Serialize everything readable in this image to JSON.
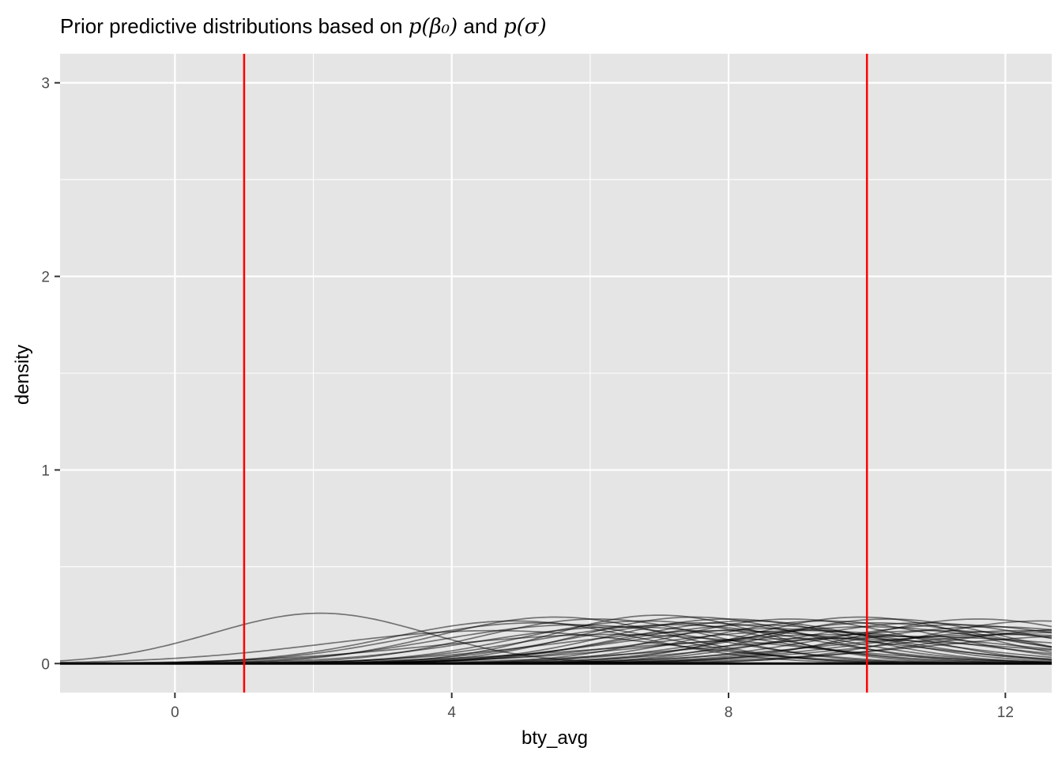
{
  "chart_data": {
    "type": "line",
    "title_prefix": "Prior predictive distributions based on ",
    "title_math_1": "p(β₀)",
    "title_and": " and ",
    "title_math_2": "p(σ)",
    "xlabel": "bty_avg",
    "ylabel": "density",
    "xlim": [
      -1.66,
      12.67
    ],
    "ylim": [
      -0.15,
      3.15
    ],
    "x_ticks": [
      0,
      4,
      8,
      12
    ],
    "x_minor": [
      2,
      6,
      10
    ],
    "y_ticks": [
      0,
      1,
      2,
      3
    ],
    "y_minor": [
      0.5,
      1.5,
      2.5
    ],
    "grid": true,
    "background": "#e5e5e5",
    "grid_color": "#ffffff",
    "curve_color": "#000000",
    "reference_lines": {
      "x": [
        1,
        10
      ],
      "color": "#ff0000"
    },
    "series": [
      {
        "mean": 2.1,
        "sd": 1.55,
        "peak": 0.26
      },
      {
        "mean": 5.5,
        "sd": 1.7,
        "peak": 0.24
      },
      {
        "mean": 7.0,
        "sd": 1.55,
        "peak": 0.25
      },
      {
        "mean": 9.9,
        "sd": 1.65,
        "peak": 0.24
      },
      {
        "mean": 4.9,
        "sd": 1.8,
        "peak": 0.22
      },
      {
        "mean": 12.5,
        "sd": 1.8,
        "peak": 0.22
      },
      {
        "mean": 5.8,
        "sd": 2.0,
        "peak": 0.2
      },
      {
        "mean": 6.5,
        "sd": 2.1,
        "peak": 0.19
      },
      {
        "mean": 7.6,
        "sd": 1.9,
        "peak": 0.21
      },
      {
        "mean": 8.3,
        "sd": 1.8,
        "peak": 0.22
      },
      {
        "mean": 8.9,
        "sd": 1.7,
        "peak": 0.23
      },
      {
        "mean": 9.4,
        "sd": 1.8,
        "peak": 0.22
      },
      {
        "mean": 10.3,
        "sd": 1.7,
        "peak": 0.23
      },
      {
        "mean": 10.8,
        "sd": 1.9,
        "peak": 0.21
      },
      {
        "mean": 11.3,
        "sd": 2.0,
        "peak": 0.2
      },
      {
        "mean": 11.8,
        "sd": 2.1,
        "peak": 0.19
      },
      {
        "mean": 12.3,
        "sd": 2.3,
        "peak": 0.17
      },
      {
        "mean": 6.1,
        "sd": 1.7,
        "peak": 0.23
      },
      {
        "mean": 7.2,
        "sd": 2.0,
        "peak": 0.2
      },
      {
        "mean": 8.6,
        "sd": 2.2,
        "peak": 0.18
      },
      {
        "mean": 9.1,
        "sd": 2.3,
        "peak": 0.17
      },
      {
        "mean": 10.0,
        "sd": 2.1,
        "peak": 0.19
      },
      {
        "mean": 11.0,
        "sd": 2.4,
        "peak": 0.17
      },
      {
        "mean": 12.0,
        "sd": 2.6,
        "peak": 0.15
      },
      {
        "mean": 5.2,
        "sd": 1.9,
        "peak": 0.21
      },
      {
        "mean": 6.8,
        "sd": 1.8,
        "peak": 0.22
      },
      {
        "mean": 7.9,
        "sd": 2.4,
        "peak": 0.17
      },
      {
        "mean": 9.6,
        "sd": 2.6,
        "peak": 0.15
      },
      {
        "mean": 8.0,
        "sd": 1.75,
        "peak": 0.23
      },
      {
        "mean": 10.6,
        "sd": 2.8,
        "peak": 0.14
      },
      {
        "mean": 12.8,
        "sd": 2.5,
        "peak": 0.16
      },
      {
        "mean": 4.6,
        "sd": 2.4,
        "peak": 0.17
      },
      {
        "mean": 13.2,
        "sd": 2.2,
        "peak": 0.18
      },
      {
        "mean": 9.3,
        "sd": 3.0,
        "peak": 0.13
      },
      {
        "mean": 8.4,
        "sd": 1.95,
        "peak": 0.2
      },
      {
        "mean": 11.6,
        "sd": 1.75,
        "peak": 0.23
      },
      {
        "mean": 7.5,
        "sd": 1.65,
        "peak": 0.24
      },
      {
        "mean": 6.3,
        "sd": 2.6,
        "peak": 0.15
      },
      {
        "mean": 10.1,
        "sd": 1.9,
        "peak": 0.21
      },
      {
        "mean": 13.6,
        "sd": 2.7,
        "peak": 0.15
      }
    ]
  }
}
